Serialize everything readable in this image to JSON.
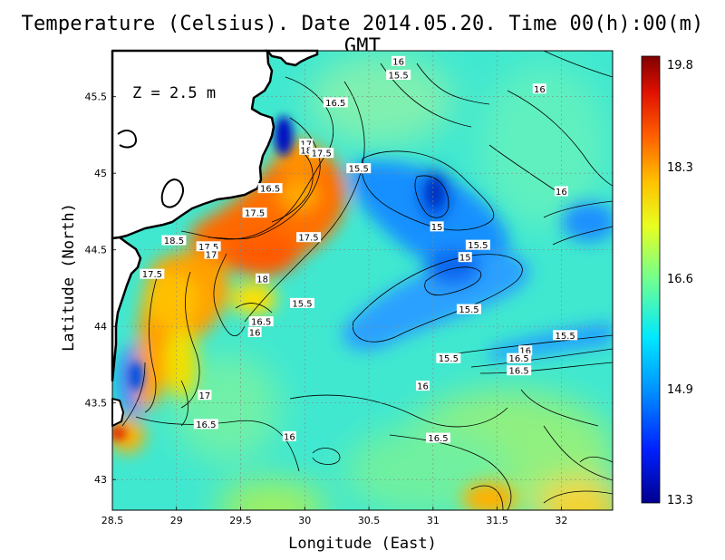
{
  "title": "Temperature (Celsius). Date 2014.05.20. Time 00(h):00(m) GMT",
  "depth_label": "Z = 2.5 m",
  "chart_data": {
    "type": "heatmap",
    "xlabel": "Longitude (East)",
    "ylabel": "Latitude (North)",
    "xlim": [
      28.5,
      32.4
    ],
    "ylim": [
      42.8,
      45.8
    ],
    "x_ticks": [
      "28.5",
      "29",
      "29.5",
      "30",
      "30.5",
      "31",
      "31.5",
      "32"
    ],
    "y_ticks": [
      "43",
      "43.5",
      "44",
      "44.5",
      "45",
      "45.5"
    ],
    "grid": true,
    "colorbar": {
      "min": 13.3,
      "max": 19.8,
      "labels": [
        "19.8",
        "18.3",
        "16.6",
        "14.9",
        "13.3"
      ]
    },
    "contour_labels": [
      {
        "text": "16",
        "lon": 30.73,
        "lat": 45.73
      },
      {
        "text": "15.5",
        "lon": 30.73,
        "lat": 45.64
      },
      {
        "text": "16",
        "lon": 31.83,
        "lat": 45.55
      },
      {
        "text": "16.5",
        "lon": 30.24,
        "lat": 45.46
      },
      {
        "text": "17",
        "lon": 30.01,
        "lat": 45.19
      },
      {
        "text": "18",
        "lon": 30.01,
        "lat": 45.15
      },
      {
        "text": "17.5",
        "lon": 30.13,
        "lat": 45.13
      },
      {
        "text": "15.5",
        "lon": 30.42,
        "lat": 45.03
      },
      {
        "text": "16.5",
        "lon": 29.73,
        "lat": 44.9
      },
      {
        "text": "16",
        "lon": 32.0,
        "lat": 44.88
      },
      {
        "text": "17.5",
        "lon": 29.61,
        "lat": 44.74
      },
      {
        "text": "15",
        "lon": 31.03,
        "lat": 44.65
      },
      {
        "text": "17.5",
        "lon": 30.03,
        "lat": 44.58
      },
      {
        "text": "18.5",
        "lon": 28.98,
        "lat": 44.56
      },
      {
        "text": "17.5",
        "lon": 29.25,
        "lat": 44.52
      },
      {
        "text": "17",
        "lon": 29.27,
        "lat": 44.47
      },
      {
        "text": "15.5",
        "lon": 31.35,
        "lat": 44.53
      },
      {
        "text": "15",
        "lon": 31.25,
        "lat": 44.45
      },
      {
        "text": "17.5",
        "lon": 28.81,
        "lat": 44.34
      },
      {
        "text": "18",
        "lon": 29.67,
        "lat": 44.31
      },
      {
        "text": "15.5",
        "lon": 29.98,
        "lat": 44.15
      },
      {
        "text": "15.5",
        "lon": 31.28,
        "lat": 44.11
      },
      {
        "text": "16.5",
        "lon": 29.66,
        "lat": 44.03
      },
      {
        "text": "16",
        "lon": 29.61,
        "lat": 43.96
      },
      {
        "text": "15.5",
        "lon": 32.03,
        "lat": 43.94
      },
      {
        "text": "16",
        "lon": 31.72,
        "lat": 43.84
      },
      {
        "text": "15.5",
        "lon": 31.12,
        "lat": 43.79
      },
      {
        "text": "16.5",
        "lon": 31.67,
        "lat": 43.79
      },
      {
        "text": "16.5",
        "lon": 31.67,
        "lat": 43.71
      },
      {
        "text": "16",
        "lon": 30.92,
        "lat": 43.61
      },
      {
        "text": "17",
        "lon": 29.22,
        "lat": 43.55
      },
      {
        "text": "16.5",
        "lon": 29.23,
        "lat": 43.36
      },
      {
        "text": "16",
        "lon": 29.88,
        "lat": 43.28
      },
      {
        "text": "16.5",
        "lon": 31.04,
        "lat": 43.27
      }
    ]
  }
}
